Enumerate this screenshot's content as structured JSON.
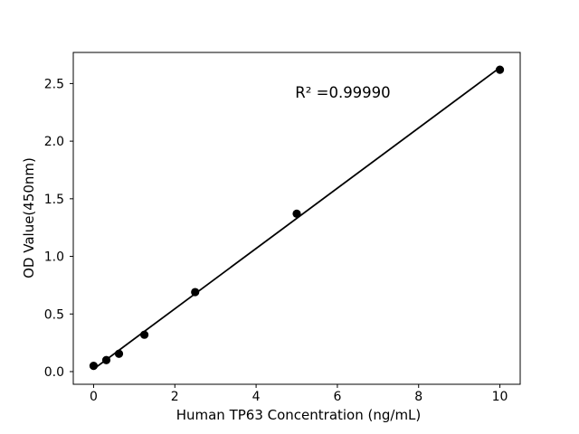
{
  "figure": {
    "background": "#ffffff",
    "foreground": "#000000"
  },
  "chart_data": {
    "type": "scatter",
    "title": "",
    "xlabel": "Human TP63 Concentration (ng/mL)",
    "ylabel": "OD Value(450nm)",
    "annotation": "R² =0.99990",
    "x": [
      0,
      0.313,
      0.625,
      1.25,
      2.5,
      5,
      10
    ],
    "y": [
      0.05,
      0.1,
      0.155,
      0.32,
      0.69,
      1.37,
      2.62
    ],
    "trendline": {
      "x": [
        0,
        10
      ],
      "y": [
        0.022,
        2.638
      ]
    },
    "xticks": {
      "values": [
        0,
        2,
        4,
        6,
        8,
        10
      ],
      "labels": [
        "0",
        "2",
        "4",
        "6",
        "8",
        "10"
      ]
    },
    "yticks": {
      "values": [
        0,
        0.5,
        1.0,
        1.5,
        2.0,
        2.5
      ],
      "labels": [
        "0.0",
        "0.5",
        "1.0",
        "1.5",
        "2.0",
        "2.5"
      ]
    },
    "xlim": [
      -0.5,
      10.5
    ],
    "ylim": [
      -0.11,
      2.77
    ],
    "grid": false,
    "legend": "none",
    "marker_color": "#000000",
    "line_color": "#000000"
  }
}
